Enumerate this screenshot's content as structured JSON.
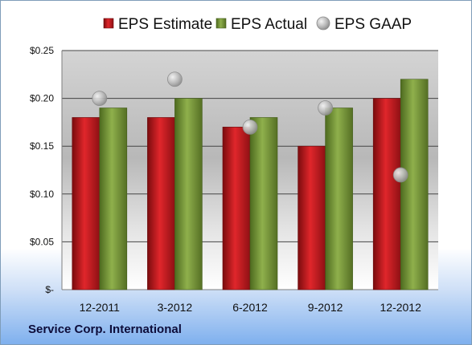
{
  "company": "Service Corp. International",
  "chart_data": {
    "type": "bar",
    "categories": [
      "12-2011",
      "3-2012",
      "6-2012",
      "9-2012",
      "12-2012"
    ],
    "series": [
      {
        "name": "EPS Estimate",
        "kind": "bar",
        "color": "#c8191e",
        "values": [
          0.18,
          0.18,
          0.17,
          0.15,
          0.2
        ]
      },
      {
        "name": "EPS Actual",
        "kind": "bar",
        "color": "#7a9b3c",
        "values": [
          0.19,
          0.2,
          0.18,
          0.19,
          0.22
        ]
      },
      {
        "name": "EPS GAAP",
        "kind": "marker",
        "color": "#a6a6a6",
        "values": [
          0.2,
          0.22,
          0.17,
          0.19,
          0.12
        ]
      }
    ],
    "ylim": [
      0,
      0.25
    ],
    "yticks": [
      0,
      0.05,
      0.1,
      0.15,
      0.2,
      0.25
    ],
    "ytick_labels": [
      "$-",
      "$0.05",
      "$0.10",
      "$0.15",
      "$0.20",
      "$0.25"
    ],
    "grid": true,
    "legend": "top"
  }
}
